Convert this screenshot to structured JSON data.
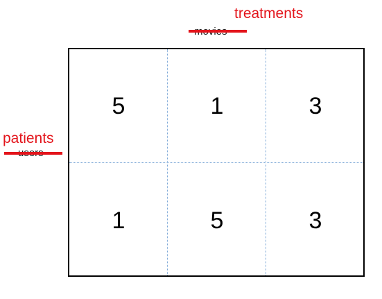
{
  "columns_label": {
    "new": "treatments",
    "old": "movies"
  },
  "rows_label": {
    "new": "patients",
    "old": "users"
  },
  "matrix": {
    "rows": [
      [
        "5",
        "1",
        "3"
      ],
      [
        "1",
        "5",
        "3"
      ]
    ]
  },
  "colors": {
    "annotation": "#e3141b",
    "grid_divider": "#7aa6d6",
    "border": "#000000"
  }
}
